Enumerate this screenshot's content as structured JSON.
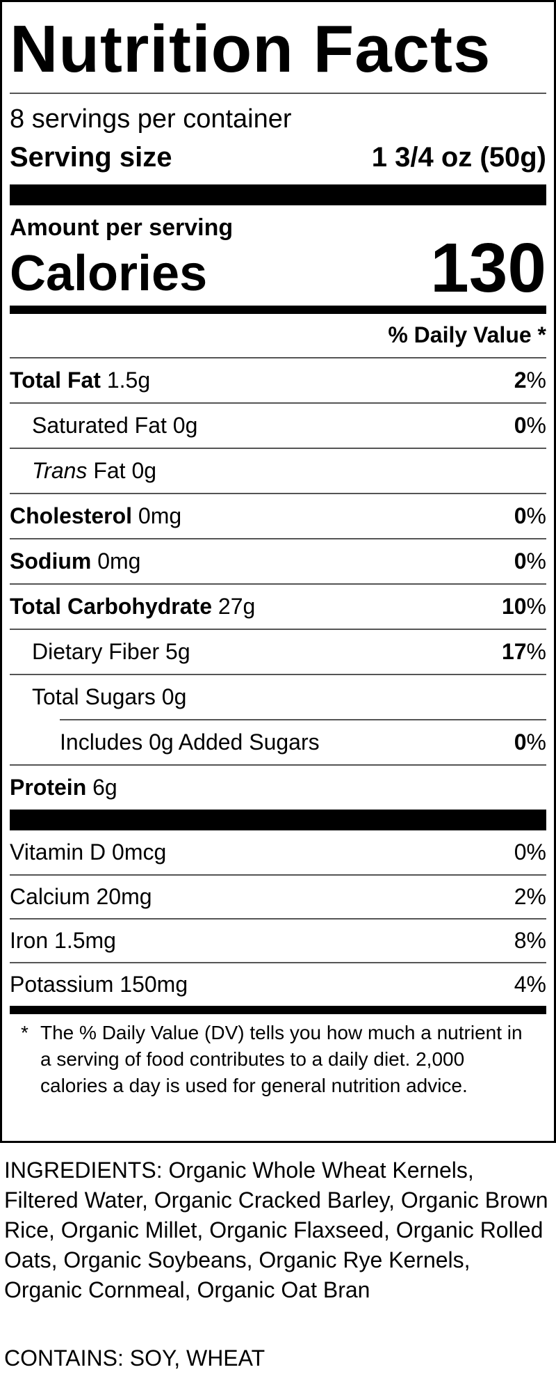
{
  "title": "Nutrition Facts",
  "servings_per_container": "8 servings per container",
  "serving_size": {
    "label": "Serving size",
    "value": "1 3/4 oz (50g)"
  },
  "amount_per_serving": "Amount per serving",
  "calories": {
    "label": "Calories",
    "value": "130"
  },
  "daily_value_header": "% Daily Value *",
  "nutrients": [
    {
      "name": "Total Fat",
      "amount": "1.5g",
      "dv": "2",
      "pct": "%"
    },
    {
      "name": "Saturated Fat",
      "amount": "0g",
      "dv": "0",
      "pct": "%"
    },
    {
      "name": "Trans",
      "suffix": "Fat 0g",
      "dv": "",
      "pct": ""
    },
    {
      "name": "Cholesterol",
      "amount": "0mg",
      "dv": "0",
      "pct": "%"
    },
    {
      "name": "Sodium",
      "amount": "0mg",
      "dv": "0",
      "pct": "%"
    },
    {
      "name": "Total Carbohydrate",
      "amount": "27g",
      "dv": "10",
      "pct": "%"
    },
    {
      "name": "Dietary Fiber",
      "amount": "5g",
      "dv": "17",
      "pct": "%"
    },
    {
      "name": "Total Sugars",
      "amount": "0g",
      "dv": "",
      "pct": ""
    },
    {
      "name": "Includes 0g Added Sugars",
      "amount": "",
      "dv": "0",
      "pct": "%"
    },
    {
      "name": "Protein",
      "amount": "6g",
      "dv": "",
      "pct": ""
    }
  ],
  "vitamins": [
    {
      "text": "Vitamin D 0mcg",
      "dv": "0%"
    },
    {
      "text": "Calcium 20mg",
      "dv": "2%"
    },
    {
      "text": "Iron 1.5mg",
      "dv": "8%"
    },
    {
      "text": "Potassium 150mg",
      "dv": "4%"
    }
  ],
  "footnote": {
    "star": "*",
    "text": "The % Daily Value (DV) tells you how much a nutrient in a serving of food contributes to a daily diet. 2,000 calories a day is used for general nutrition advice."
  },
  "ingredients": "INGREDIENTS: Organic Whole Wheat Kernels, Filtered Water, Organic Cracked Barley, Organic Brown Rice, Organic Millet, Organic Flaxseed, Organic Rolled Oats, Organic Soybeans, Organic Rye Kernels, Organic Cornmeal, Organic Oat Bran",
  "contains": "CONTAINS: SOY, WHEAT"
}
